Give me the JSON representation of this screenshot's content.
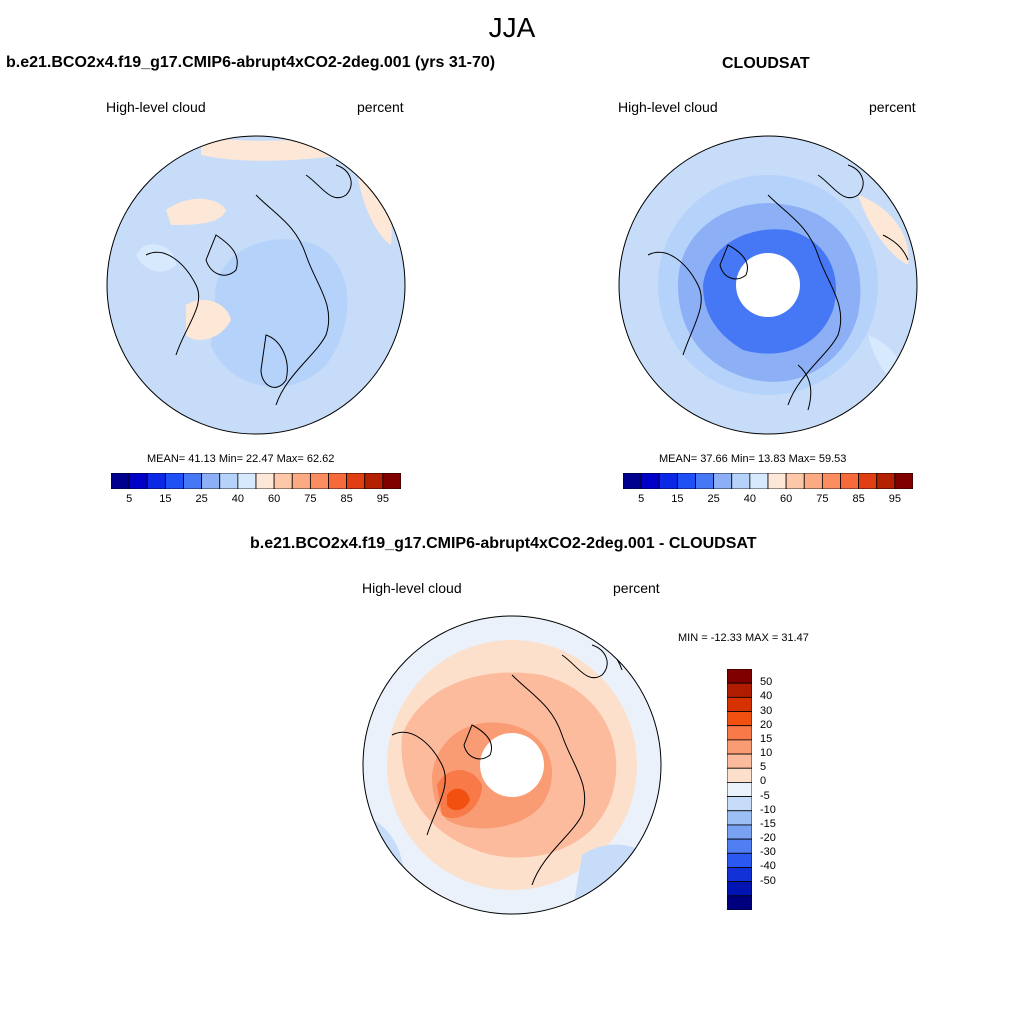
{
  "figure": {
    "season": "JJA"
  },
  "panels": [
    {
      "title": "b.e21.BCO2x4.f19_g17.CMIP6-abrupt4xCO2-2deg.001 (yrs 31-70)",
      "left_label": "High-level cloud",
      "right_label": "percent",
      "stats": "MEAN=  41.13  Min=  22.47  Max=  62.62"
    },
    {
      "title": "CLOUDSAT",
      "left_label": "High-level cloud",
      "right_label": "percent",
      "stats": "MEAN=  37.66  Min=  13.83  Max=  59.53"
    },
    {
      "title": "b.e21.BCO2x4.f19_g17.CMIP6-abrupt4xCO2-2deg.001 - CLOUDSAT",
      "left_label": "High-level cloud",
      "right_label": "percent",
      "stats": "MIN = -12.33 MAX =  31.47"
    }
  ],
  "colorbar_abs": {
    "colors": [
      "#00008f",
      "#0000c8",
      "#0a28e6",
      "#1e50f5",
      "#4678f5",
      "#8caff5",
      "#b4d2fa",
      "#d7e9fc",
      "#fde7d6",
      "#fcc8a8",
      "#fbaa84",
      "#fa8c60",
      "#f76a3c",
      "#e23e14",
      "#b52000",
      "#800000"
    ],
    "tick_labels": [
      "5",
      "15",
      "25",
      "40",
      "60",
      "75",
      "85",
      "95"
    ]
  },
  "colorbar_diff": {
    "colors_top_to_bottom": [
      "#800000",
      "#b01c00",
      "#d63200",
      "#f25010",
      "#f77a48",
      "#f99c74",
      "#fbbb9c",
      "#fde0cc",
      "#eaf1fb",
      "#c6dcf8",
      "#9cbff4",
      "#7aa2f2",
      "#4f7ff2",
      "#2b58f0",
      "#1232d8",
      "#0014b4",
      "#00007f"
    ],
    "tick_labels": [
      "50",
      "40",
      "30",
      "20",
      "15",
      "10",
      "5",
      "0",
      "-5",
      "-10",
      "-15",
      "-20",
      "-30",
      "-40",
      "-50"
    ]
  },
  "maps": [
    {
      "base": "#c6dcf8",
      "region": "northern-hemisphere-polar",
      "hole": false
    },
    {
      "base": "#c6dcf8",
      "region": "northern-hemisphere-polar",
      "hole": true
    },
    {
      "base": "#fcd9c2",
      "region": "northern-hemisphere-polar",
      "hole": true
    }
  ]
}
